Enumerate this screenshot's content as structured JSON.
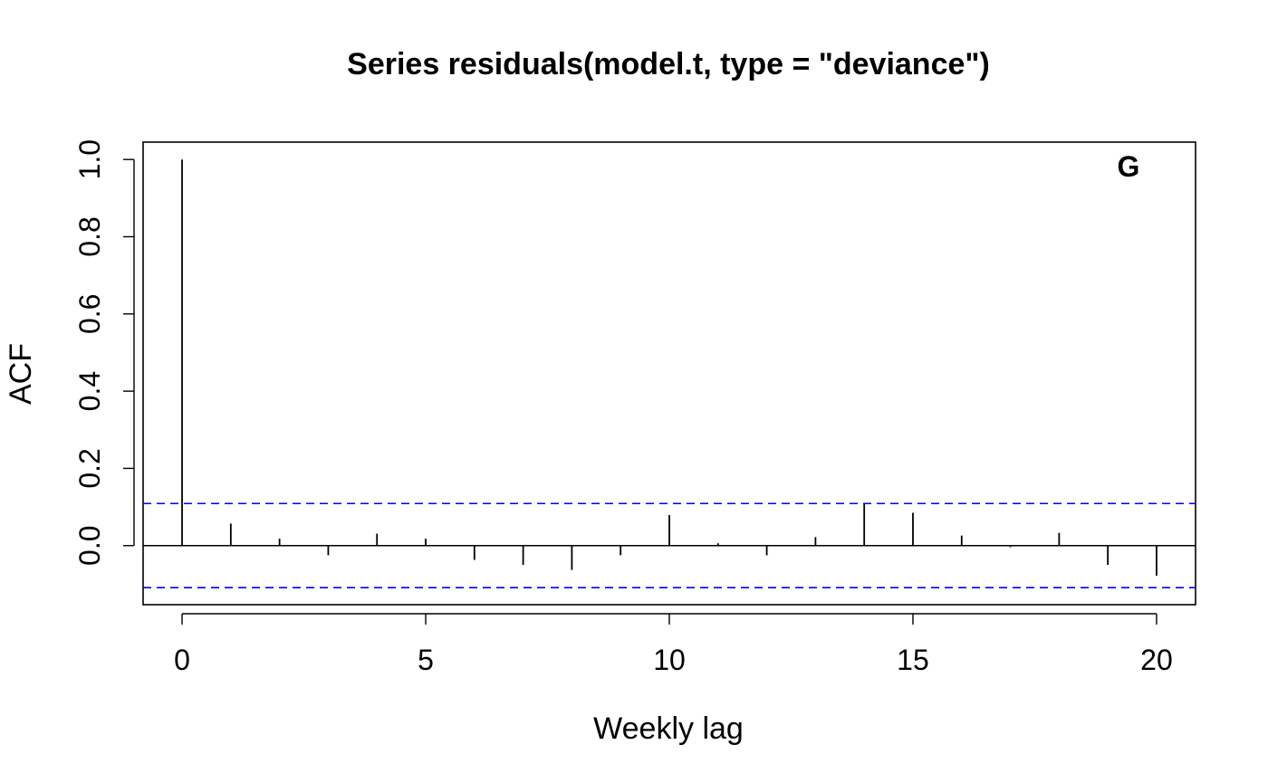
{
  "chart_data": {
    "type": "bar",
    "title": "Series  residuals(model.t, type = \"deviance\")",
    "xlabel": "Weekly lag",
    "ylabel": "ACF",
    "panel_label": "G",
    "x_ticks": [
      0,
      5,
      10,
      15,
      20
    ],
    "y_ticks": [
      0.0,
      0.2,
      0.4,
      0.6,
      0.8,
      1.0
    ],
    "x_tick_labels": [
      "0",
      "5",
      "10",
      "15",
      "20"
    ],
    "y_tick_labels": [
      "0.0",
      "0.2",
      "0.4",
      "0.6",
      "0.8",
      "1.0"
    ],
    "xlim": [
      -0.8,
      20.8
    ],
    "ylim": [
      -0.153,
      1.045
    ],
    "lags": [
      0,
      1,
      2,
      3,
      4,
      5,
      6,
      7,
      8,
      9,
      10,
      11,
      12,
      13,
      14,
      15,
      16,
      17,
      18,
      19,
      20
    ],
    "acf": [
      1.0,
      0.057,
      0.018,
      -0.025,
      0.031,
      0.018,
      -0.037,
      -0.05,
      -0.063,
      -0.025,
      0.079,
      0.006,
      -0.025,
      0.022,
      0.108,
      0.085,
      0.026,
      -0.004,
      0.033,
      -0.05,
      -0.078
    ],
    "confidence_bound": 0.109,
    "confidence_color": "#0000ff",
    "line_color": "#000000"
  }
}
